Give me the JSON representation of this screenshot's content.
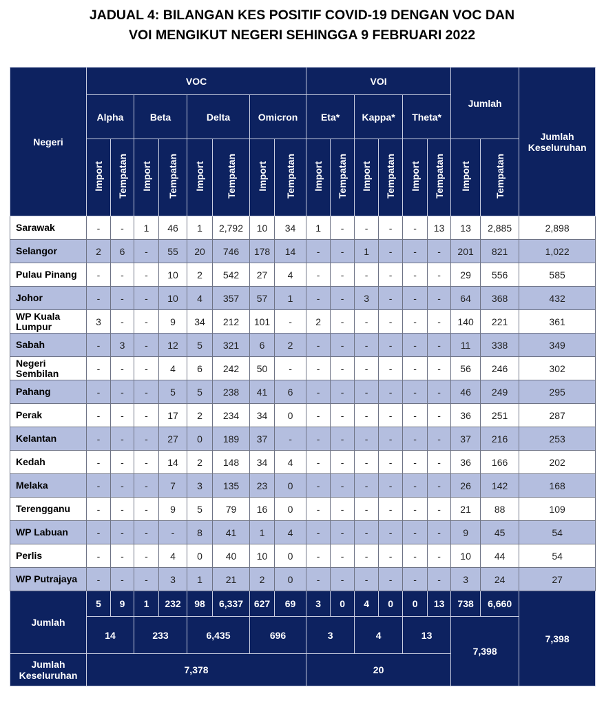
{
  "title": {
    "line1": "JADUAL 4: BILANGAN KES POSITIF COVID-19 DENGAN VOC DAN",
    "line2": "VOI MENGIKUT NEGERI SEHINGGA 9 FEBRUARI 2022"
  },
  "header": {
    "negeri": "Negeri",
    "voc": "VOC",
    "voi": "VOI",
    "jumlah": "Jumlah",
    "jumlah_keseluruhan": "Jumlah Keseluruhan",
    "variants": [
      "Alpha",
      "Beta",
      "Delta",
      "Omicron",
      "Eta*",
      "Kappa*",
      "Theta*"
    ],
    "import": "Import",
    "tempatan": "Tempatan"
  },
  "rows": [
    {
      "negeri": "Sarawak",
      "v": [
        "-",
        "-",
        "1",
        "46",
        "1",
        "2,792",
        "10",
        "34",
        "1",
        "-",
        "-",
        "-",
        "-",
        "13",
        "13",
        "2,885",
        "2,898"
      ]
    },
    {
      "negeri": "Selangor",
      "v": [
        "2",
        "6",
        "-",
        "55",
        "20",
        "746",
        "178",
        "14",
        "-",
        "-",
        "1",
        "-",
        "-",
        "-",
        "201",
        "821",
        "1,022"
      ]
    },
    {
      "negeri": "Pulau Pinang",
      "v": [
        "-",
        "-",
        "-",
        "10",
        "2",
        "542",
        "27",
        "4",
        "-",
        "-",
        "-",
        "-",
        "-",
        "-",
        "29",
        "556",
        "585"
      ]
    },
    {
      "negeri": "Johor",
      "v": [
        "-",
        "-",
        "-",
        "10",
        "4",
        "357",
        "57",
        "1",
        "-",
        "-",
        "3",
        "-",
        "-",
        "-",
        "64",
        "368",
        "432"
      ]
    },
    {
      "negeri": "WP Kuala Lumpur",
      "v": [
        "3",
        "-",
        "-",
        "9",
        "34",
        "212",
        "101",
        "-",
        "2",
        "-",
        "-",
        "-",
        "-",
        "-",
        "140",
        "221",
        "361"
      ]
    },
    {
      "negeri": "Sabah",
      "v": [
        "-",
        "3",
        "-",
        "12",
        "5",
        "321",
        "6",
        "2",
        "-",
        "-",
        "-",
        "-",
        "-",
        "-",
        "11",
        "338",
        "349"
      ]
    },
    {
      "negeri": "Negeri Sembilan",
      "v": [
        "-",
        "-",
        "-",
        "4",
        "6",
        "242",
        "50",
        "-",
        "-",
        "-",
        "-",
        "-",
        "-",
        "-",
        "56",
        "246",
        "302"
      ]
    },
    {
      "negeri": "Pahang",
      "v": [
        "-",
        "-",
        "-",
        "5",
        "5",
        "238",
        "41",
        "6",
        "-",
        "-",
        "-",
        "-",
        "-",
        "-",
        "46",
        "249",
        "295"
      ]
    },
    {
      "negeri": "Perak",
      "v": [
        "-",
        "-",
        "-",
        "17",
        "2",
        "234",
        "34",
        "0",
        "-",
        "-",
        "-",
        "-",
        "-",
        "-",
        "36",
        "251",
        "287"
      ]
    },
    {
      "negeri": "Kelantan",
      "v": [
        "-",
        "-",
        "-",
        "27",
        "0",
        "189",
        "37",
        "-",
        "-",
        "-",
        "-",
        "-",
        "-",
        "-",
        "37",
        "216",
        "253"
      ]
    },
    {
      "negeri": "Kedah",
      "v": [
        "-",
        "-",
        "-",
        "14",
        "2",
        "148",
        "34",
        "4",
        "-",
        "-",
        "-",
        "-",
        "-",
        "-",
        "36",
        "166",
        "202"
      ]
    },
    {
      "negeri": "Melaka",
      "v": [
        "-",
        "-",
        "-",
        "7",
        "3",
        "135",
        "23",
        "0",
        "-",
        "-",
        "-",
        "-",
        "-",
        "-",
        "26",
        "142",
        "168"
      ]
    },
    {
      "negeri": "Terengganu",
      "v": [
        "-",
        "-",
        "-",
        "9",
        "5",
        "79",
        "16",
        "0",
        "-",
        "-",
        "-",
        "-",
        "-",
        "-",
        "21",
        "88",
        "109"
      ]
    },
    {
      "negeri": "WP Labuan",
      "v": [
        "-",
        "-",
        "-",
        "-",
        "8",
        "41",
        "1",
        "4",
        "-",
        "-",
        "-",
        "-",
        "-",
        "-",
        "9",
        "45",
        "54"
      ]
    },
    {
      "negeri": "Perlis",
      "v": [
        "-",
        "-",
        "-",
        "4",
        "0",
        "40",
        "10",
        "0",
        "-",
        "-",
        "-",
        "-",
        "-",
        "-",
        "10",
        "44",
        "54"
      ]
    },
    {
      "negeri": "WP Putrajaya",
      "v": [
        "-",
        "-",
        "-",
        "3",
        "1",
        "21",
        "2",
        "0",
        "-",
        "-",
        "-",
        "-",
        "-",
        "-",
        "3",
        "24",
        "27"
      ]
    }
  ],
  "footer": {
    "jumlah_label": "Jumlah",
    "jumlah_values": [
      "5",
      "9",
      "1",
      "232",
      "98",
      "6,337",
      "627",
      "69",
      "3",
      "0",
      "4",
      "0",
      "0",
      "13",
      "738",
      "6,660"
    ],
    "variant_totals": [
      "14",
      "233",
      "6,435",
      "696",
      "3",
      "4",
      "13"
    ],
    "jumlah_total": "7,398",
    "grand_total": "7,398",
    "keseluruhan_label": "Jumlah Keseluruhan",
    "voc_total": "7,378",
    "voi_total": "20"
  },
  "colors": {
    "header_bg": "#0d2260",
    "alt_row": "#b4bedf"
  }
}
